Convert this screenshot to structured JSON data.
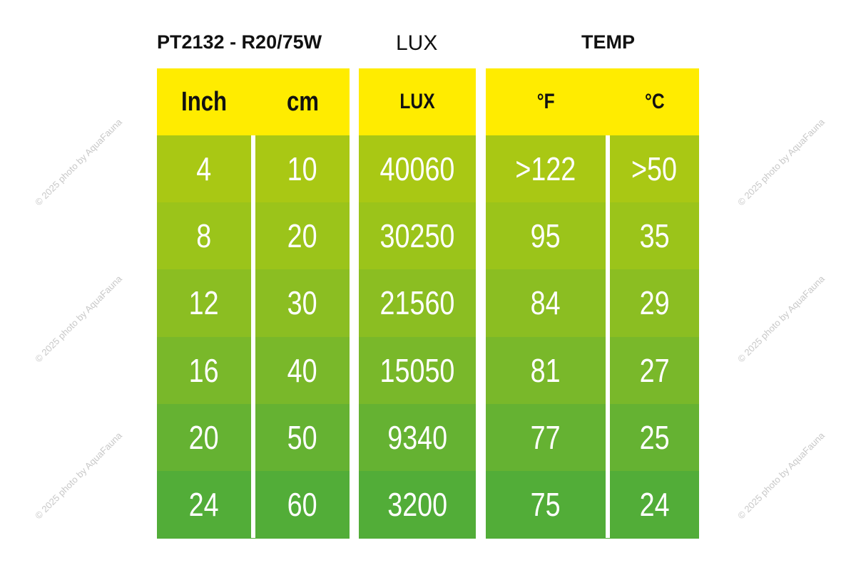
{
  "titles": {
    "product": "PT2132 - R20/75W",
    "lux": "LUX",
    "temp": "TEMP"
  },
  "headers": {
    "inch": "Inch",
    "cm": "cm",
    "lux": "LUX",
    "f": "°F",
    "c": "°C"
  },
  "rows": [
    {
      "inch": "4",
      "cm": "10",
      "lux": "40060",
      "f": ">122",
      "c": ">50"
    },
    {
      "inch": "8",
      "cm": "20",
      "lux": "30250",
      "f": "95",
      "c": "35"
    },
    {
      "inch": "12",
      "cm": "30",
      "lux": "21560",
      "f": "84",
      "c": "29"
    },
    {
      "inch": "16",
      "cm": "40",
      "lux": "15050",
      "f": "81",
      "c": "27"
    },
    {
      "inch": "20",
      "cm": "50",
      "lux": "9340",
      "f": "77",
      "c": "25"
    },
    {
      "inch": "24",
      "cm": "60",
      "lux": "3200",
      "f": "75",
      "c": "24"
    }
  ],
  "colors": {
    "header": "#ffec00",
    "rows": [
      "#a9c814",
      "#9bc41a",
      "#8bbe22",
      "#79b82a",
      "#65b232",
      "#52ad38"
    ]
  },
  "watermark": "© 2025 photo by AquaFauna"
}
